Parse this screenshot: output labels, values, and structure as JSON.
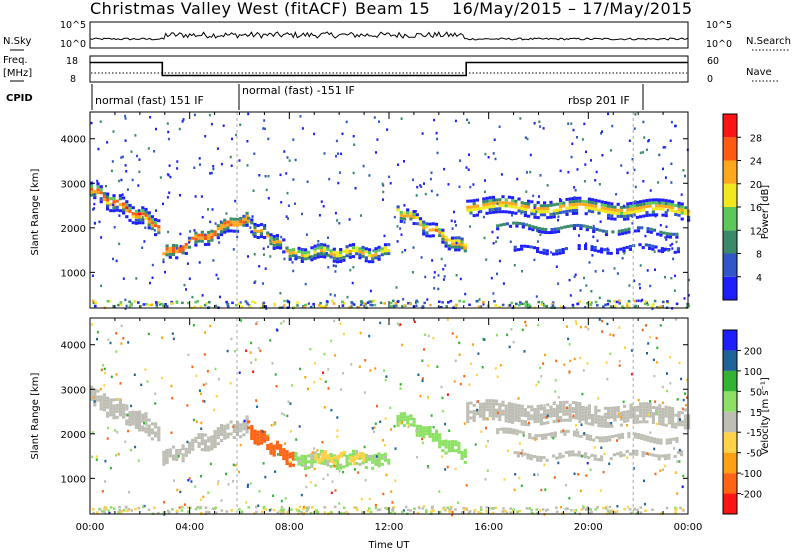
{
  "title": {
    "station": "Christmas Valley West (fitACF)",
    "beam": "Beam 15",
    "dates": "16/May/2015 – 17/May/2015"
  },
  "sky_panel": {
    "left_label": "N.Sky",
    "right_label": "N.Search",
    "left_ticks": [
      "10^5",
      "10^0"
    ],
    "right_ticks": [
      "10^5",
      "10^0"
    ]
  },
  "freq_panel": {
    "left_label_top": "Freq.",
    "left_label_bottom": "[MHz]",
    "left_ticks": [
      "18",
      "8"
    ],
    "right_label": "Nave",
    "right_ticks": [
      "60",
      "0"
    ],
    "freq_steps": [
      {
        "from_h": 0,
        "to_h": 2.9,
        "mhz": 15.5
      },
      {
        "from_h": 2.9,
        "to_h": 15.1,
        "mhz": 10.5
      },
      {
        "from_h": 15.1,
        "to_h": 24,
        "mhz": 15.5
      }
    ]
  },
  "cpid": {
    "label": "CPID",
    "segments": [
      {
        "text": "normal (fast) 151 IF",
        "start_h": 0.0
      },
      {
        "text": "normal (fast) -151 IF",
        "start_h": 5.9
      },
      {
        "text": "rbsp 201 IF",
        "start_h": 21.8
      }
    ]
  },
  "chart_data": [
    {
      "type": "heatmap",
      "name": "power",
      "ylabel": "Slant Range [km]",
      "xlim": [
        0,
        24
      ],
      "ylim": [
        200,
        4600
      ],
      "y_ticks": [
        "1000",
        "2000",
        "3000",
        "4000"
      ],
      "colorbar": {
        "label": "Power [dB]",
        "ticks": [
          "4",
          "8",
          "12",
          "16",
          "20",
          "24",
          "28"
        ],
        "range": [
          0,
          32
        ],
        "colors": [
          "#1e1eff",
          "#2f57c8",
          "#3a8a6a",
          "#5cc85a",
          "#f2e81e",
          "#ffa81e",
          "#ff5a14",
          "#ff1414"
        ]
      },
      "bands": [
        {
          "t0": 0.0,
          "t1": 2.7,
          "r0": 2850,
          "r1": 2050,
          "width": 260,
          "peak": 29
        },
        {
          "t0": 2.9,
          "t1": 6.3,
          "r0": 1400,
          "r1": 2250,
          "width": 240,
          "peak": 30
        },
        {
          "t0": 6.3,
          "t1": 8.2,
          "r0": 2100,
          "r1": 1400,
          "width": 200,
          "peak": 22
        },
        {
          "t0": 8.2,
          "t1": 12.0,
          "r0": 1450,
          "r1": 1450,
          "width": 220,
          "peak": 22
        },
        {
          "t0": 12.3,
          "t1": 15.1,
          "r0": 2400,
          "r1": 1500,
          "width": 220,
          "peak": 25
        },
        {
          "t0": 15.1,
          "t1": 24.0,
          "r0": 2500,
          "r1": 2400,
          "width": 260,
          "peak": 24
        },
        {
          "t0": 16.3,
          "t1": 23.5,
          "r0": 2050,
          "r1": 1900,
          "width": 80,
          "peak": 10
        },
        {
          "t0": 17.0,
          "t1": 23.8,
          "r0": 1500,
          "r1": 1550,
          "width": 60,
          "peak": 8
        }
      ]
    },
    {
      "type": "heatmap",
      "name": "velocity",
      "ylabel": "Slant Range [km]",
      "xlabel": "Time UT",
      "xlim": [
        0,
        24
      ],
      "ylim": [
        200,
        4600
      ],
      "y_ticks": [
        "1000",
        "2000",
        "3000",
        "4000"
      ],
      "x_ticks": [
        "00:00",
        "04:00",
        "08:00",
        "12:00",
        "16:00",
        "20:00",
        "00:00"
      ],
      "colorbar": {
        "label": "Velocity [m s⁻¹]",
        "ticks": [
          "-200",
          "-100",
          "-50",
          "-15",
          "15",
          "50",
          "100",
          "200"
        ],
        "range": [
          -250,
          250
        ],
        "colors": [
          "#ff1414",
          "#ff6414",
          "#ffa014",
          "#ffd24a",
          "#bebeb4",
          "#8ce064",
          "#32b432",
          "#1e6496",
          "#1e1eff"
        ]
      },
      "bands": [
        {
          "t0": 0.0,
          "t1": 2.7,
          "r0": 2850,
          "r1": 2050,
          "width": 300,
          "vel": 0
        },
        {
          "t0": 2.9,
          "t1": 6.3,
          "r0": 1450,
          "r1": 2250,
          "width": 260,
          "vel": 0
        },
        {
          "t0": 6.3,
          "t1": 8.2,
          "r0": 2100,
          "r1": 1400,
          "width": 220,
          "vel": -160
        },
        {
          "t0": 8.2,
          "t1": 12.0,
          "r0": 1450,
          "r1": 1450,
          "width": 240,
          "vel": 40
        },
        {
          "t0": 9.0,
          "t1": 11.0,
          "r0": 1500,
          "r1": 1450,
          "width": 120,
          "vel": -60
        },
        {
          "t0": 12.3,
          "t1": 15.1,
          "r0": 2400,
          "r1": 1500,
          "width": 220,
          "vel": 60
        },
        {
          "t0": 15.1,
          "t1": 24.0,
          "r0": 2500,
          "r1": 2400,
          "width": 300,
          "vel": 0
        },
        {
          "t0": 16.3,
          "t1": 23.5,
          "r0": 2050,
          "r1": 1900,
          "width": 90,
          "vel": 0
        },
        {
          "t0": 17.0,
          "t1": 23.8,
          "r0": 1500,
          "r1": 1550,
          "width": 70,
          "vel": 0
        }
      ]
    }
  ]
}
